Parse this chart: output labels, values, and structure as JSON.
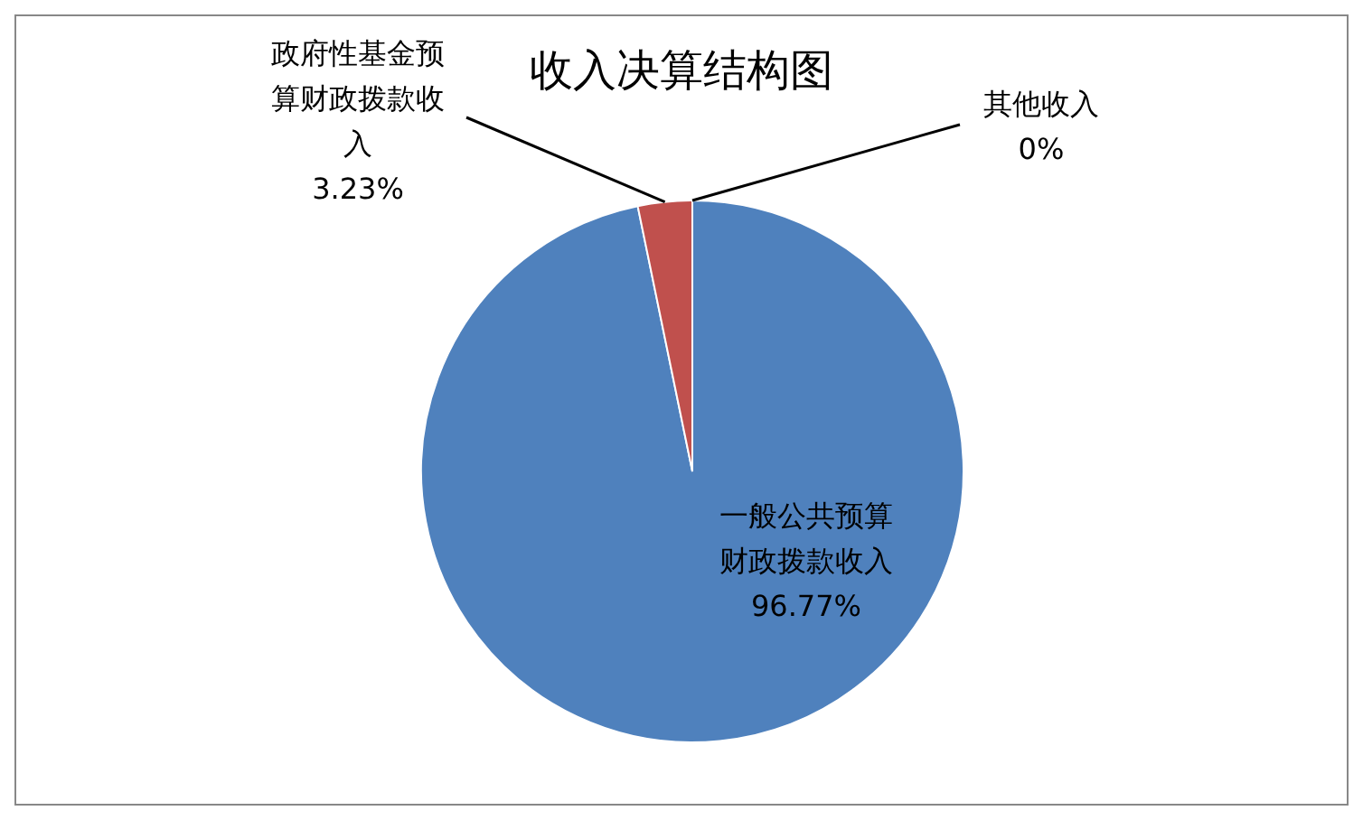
{
  "chart_data": {
    "type": "pie",
    "title": "收入决算结构图",
    "categories": [
      "一般公共预算财政拨款收入",
      "政府性基金预算财政拨款收入",
      "其他收入"
    ],
    "values": [
      96.77,
      3.23,
      0
    ],
    "value_labels": [
      "96.77%",
      "3.23%",
      "0%"
    ],
    "colors": [
      "#4f81bd",
      "#c0504d",
      "#9bbb59"
    ]
  }
}
